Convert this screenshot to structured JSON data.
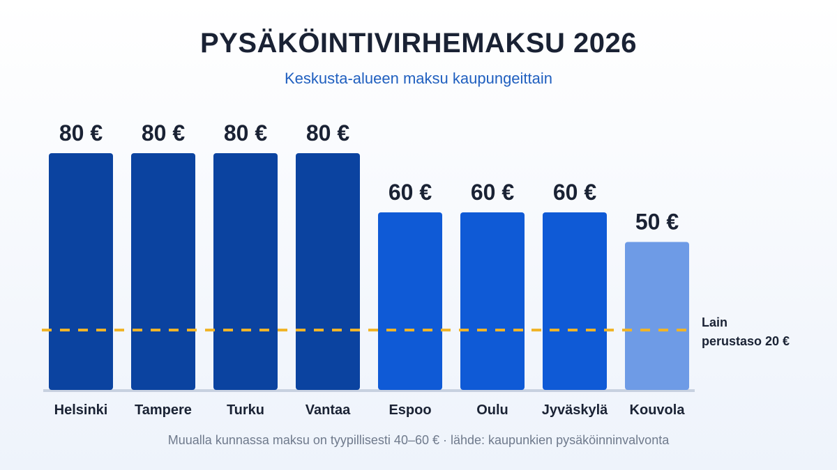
{
  "title": "PYSÄKÖINTIVIRHEMAKSU 2026",
  "subtitle": "Keskusta-alueen maksu kaupungeittain",
  "footnote": "Muualla kunnassa maksu on tyypillisesti 40–60 € · lähde: kaupunkien pysäköinninvalvonta",
  "reference": {
    "value": 20,
    "label_line1": "Lain",
    "label_line2": "perustaso 20 €",
    "color": "#f0b429"
  },
  "colors": {
    "dark": "#0b43a0",
    "mid": "#0f5ad6",
    "light": "#6e9be6",
    "baseline": "#c8d1e0",
    "value_label": "#1a2234",
    "category_label": "#1a2234"
  },
  "chart_data": {
    "type": "bar",
    "title": "PYSÄKÖINTIVIRHEMAKSU 2026",
    "subtitle": "Keskusta-alueen maksu kaupungeittain",
    "categories": [
      "Helsinki",
      "Tampere",
      "Turku",
      "Vantaa",
      "Espoo",
      "Oulu",
      "Jyväskylä",
      "Kouvola"
    ],
    "values": [
      80,
      80,
      80,
      80,
      60,
      60,
      60,
      50
    ],
    "value_labels": [
      "80 €",
      "80 €",
      "80 €",
      "80 €",
      "60 €",
      "60 €",
      "60 €",
      "50 €"
    ],
    "bar_tiers": [
      "dark",
      "dark",
      "dark",
      "dark",
      "mid",
      "mid",
      "mid",
      "light"
    ],
    "unit": "€",
    "xlabel": "",
    "ylabel": "",
    "ylim": [
      0,
      80
    ],
    "grid": false,
    "legend": "none"
  }
}
